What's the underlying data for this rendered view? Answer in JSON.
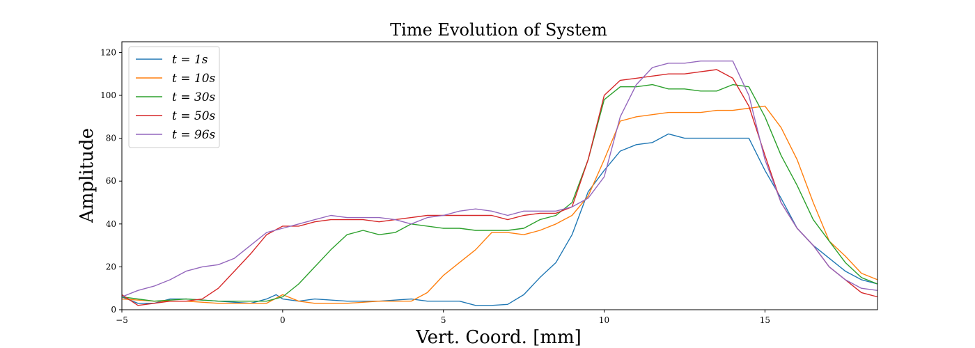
{
  "chart_data": {
    "type": "line",
    "title": "Time Evolution of System",
    "xlabel": "Vert. Coord. [mm]",
    "ylabel": "Amplitude",
    "xlim": [
      -5,
      18.5
    ],
    "ylim": [
      0,
      125
    ],
    "xticks": [
      -5,
      0,
      5,
      10,
      15
    ],
    "yticks": [
      0,
      20,
      40,
      60,
      80,
      100,
      120
    ],
    "grid": false,
    "legend_position": "upper-left",
    "series": [
      {
        "name": "t = 1s",
        "color": "#1f77b4",
        "points": [
          [
            -5,
            6
          ],
          [
            -4.5,
            3
          ],
          [
            -4,
            3
          ],
          [
            -3.5,
            5
          ],
          [
            -3,
            5
          ],
          [
            -2,
            4
          ],
          [
            -1,
            3
          ],
          [
            -0.5,
            5
          ],
          [
            -0.2,
            7
          ],
          [
            0,
            5
          ],
          [
            0.5,
            4
          ],
          [
            1,
            5
          ],
          [
            2,
            4
          ],
          [
            3,
            4
          ],
          [
            4,
            5
          ],
          [
            4.5,
            4
          ],
          [
            5,
            4
          ],
          [
            5.5,
            4
          ],
          [
            6,
            2
          ],
          [
            6.5,
            2
          ],
          [
            7,
            2.5
          ],
          [
            7.5,
            7
          ],
          [
            8,
            15
          ],
          [
            8.5,
            22
          ],
          [
            9,
            35
          ],
          [
            9.5,
            55
          ],
          [
            10,
            65
          ],
          [
            10.5,
            74
          ],
          [
            11,
            77
          ],
          [
            11.5,
            78
          ],
          [
            12,
            82
          ],
          [
            12.5,
            80
          ],
          [
            13,
            80
          ],
          [
            13.5,
            80
          ],
          [
            14,
            80
          ],
          [
            14.5,
            80
          ],
          [
            15,
            65
          ],
          [
            15.5,
            52
          ],
          [
            16,
            38
          ],
          [
            16.5,
            30
          ],
          [
            17,
            24
          ],
          [
            17.5,
            18
          ],
          [
            18,
            14
          ],
          [
            18.5,
            12
          ]
        ]
      },
      {
        "name": "t = 10s",
        "color": "#ff7f0e",
        "points": [
          [
            -5,
            5
          ],
          [
            -4,
            4
          ],
          [
            -3,
            4
          ],
          [
            -2,
            3
          ],
          [
            -1,
            3
          ],
          [
            -0.5,
            3
          ],
          [
            0,
            7
          ],
          [
            0.5,
            4
          ],
          [
            1,
            3
          ],
          [
            2,
            3
          ],
          [
            3,
            4
          ],
          [
            4,
            4
          ],
          [
            4.5,
            8
          ],
          [
            5,
            16
          ],
          [
            5.5,
            22
          ],
          [
            6,
            28
          ],
          [
            6.5,
            36
          ],
          [
            7,
            36
          ],
          [
            7.5,
            35
          ],
          [
            8,
            37
          ],
          [
            8.5,
            40
          ],
          [
            9,
            44
          ],
          [
            9.5,
            53
          ],
          [
            10,
            70
          ],
          [
            10.5,
            88
          ],
          [
            11,
            90
          ],
          [
            11.5,
            91
          ],
          [
            12,
            92
          ],
          [
            12.5,
            92
          ],
          [
            13,
            92
          ],
          [
            13.5,
            93
          ],
          [
            14,
            93
          ],
          [
            14.5,
            94
          ],
          [
            15,
            95
          ],
          [
            15.5,
            85
          ],
          [
            16,
            70
          ],
          [
            16.5,
            50
          ],
          [
            17,
            32
          ],
          [
            17.5,
            25
          ],
          [
            18,
            17
          ],
          [
            18.5,
            14
          ]
        ]
      },
      {
        "name": "t = 30s",
        "color": "#2ca02c",
        "points": [
          [
            -5,
            6
          ],
          [
            -4,
            4
          ],
          [
            -3,
            5
          ],
          [
            -2,
            4
          ],
          [
            -1,
            4
          ],
          [
            -0.5,
            4
          ],
          [
            0,
            6
          ],
          [
            0.5,
            12
          ],
          [
            1,
            20
          ],
          [
            1.5,
            28
          ],
          [
            2,
            35
          ],
          [
            2.5,
            37
          ],
          [
            3,
            35
          ],
          [
            3.5,
            36
          ],
          [
            4,
            40
          ],
          [
            4.5,
            39
          ],
          [
            5,
            38
          ],
          [
            5.5,
            38
          ],
          [
            6,
            37
          ],
          [
            6.5,
            37
          ],
          [
            7,
            37
          ],
          [
            7.5,
            38
          ],
          [
            8,
            42
          ],
          [
            8.5,
            44
          ],
          [
            9,
            50
          ],
          [
            9.5,
            70
          ],
          [
            10,
            98
          ],
          [
            10.5,
            104
          ],
          [
            11,
            104
          ],
          [
            11.5,
            105
          ],
          [
            12,
            103
          ],
          [
            12.5,
            103
          ],
          [
            13,
            102
          ],
          [
            13.5,
            102
          ],
          [
            14,
            105
          ],
          [
            14.5,
            104
          ],
          [
            15,
            90
          ],
          [
            15.5,
            72
          ],
          [
            16,
            58
          ],
          [
            16.5,
            42
          ],
          [
            17,
            32
          ],
          [
            17.5,
            22
          ],
          [
            18,
            15
          ],
          [
            18.5,
            12
          ]
        ]
      },
      {
        "name": "t = 50s",
        "color": "#d62728",
        "points": [
          [
            -5,
            7
          ],
          [
            -4.5,
            2
          ],
          [
            -4,
            3
          ],
          [
            -3.5,
            4
          ],
          [
            -3,
            4
          ],
          [
            -2.5,
            5
          ],
          [
            -2,
            10
          ],
          [
            -1.5,
            18
          ],
          [
            -1,
            26
          ],
          [
            -0.5,
            35
          ],
          [
            0,
            39
          ],
          [
            0.5,
            39
          ],
          [
            1,
            41
          ],
          [
            1.5,
            42
          ],
          [
            2,
            42
          ],
          [
            2.5,
            42
          ],
          [
            3,
            41
          ],
          [
            3.5,
            42
          ],
          [
            4,
            43
          ],
          [
            4.5,
            44
          ],
          [
            5,
            44
          ],
          [
            5.5,
            44
          ],
          [
            6,
            44
          ],
          [
            6.5,
            44
          ],
          [
            7,
            42
          ],
          [
            7.5,
            44
          ],
          [
            8,
            45
          ],
          [
            8.5,
            45
          ],
          [
            9,
            48
          ],
          [
            9.5,
            70
          ],
          [
            10,
            100
          ],
          [
            10.5,
            107
          ],
          [
            11,
            108
          ],
          [
            11.5,
            109
          ],
          [
            12,
            110
          ],
          [
            12.5,
            110
          ],
          [
            13,
            111
          ],
          [
            13.5,
            112
          ],
          [
            14,
            108
          ],
          [
            14.5,
            95
          ],
          [
            15,
            72
          ],
          [
            15.5,
            50
          ],
          [
            16,
            38
          ],
          [
            16.5,
            30
          ],
          [
            17,
            20
          ],
          [
            17.5,
            14
          ],
          [
            18,
            8
          ],
          [
            18.5,
            6
          ]
        ]
      },
      {
        "name": "t = 96s",
        "color": "#9467bd",
        "points": [
          [
            -5,
            6
          ],
          [
            -4.5,
            9
          ],
          [
            -4,
            11
          ],
          [
            -3.5,
            14
          ],
          [
            -3,
            18
          ],
          [
            -2.5,
            20
          ],
          [
            -2,
            21
          ],
          [
            -1.5,
            24
          ],
          [
            -1,
            30
          ],
          [
            -0.5,
            36
          ],
          [
            0,
            38
          ],
          [
            0.5,
            40
          ],
          [
            1,
            42
          ],
          [
            1.5,
            44
          ],
          [
            2,
            43
          ],
          [
            2.5,
            43
          ],
          [
            3,
            43
          ],
          [
            3.5,
            42
          ],
          [
            4,
            40
          ],
          [
            4.5,
            43
          ],
          [
            5,
            44
          ],
          [
            5.5,
            46
          ],
          [
            6,
            47
          ],
          [
            6.5,
            46
          ],
          [
            7,
            44
          ],
          [
            7.5,
            46
          ],
          [
            8,
            46
          ],
          [
            8.5,
            46
          ],
          [
            9,
            48
          ],
          [
            9.5,
            52
          ],
          [
            10,
            62
          ],
          [
            10.5,
            90
          ],
          [
            11,
            105
          ],
          [
            11.5,
            113
          ],
          [
            12,
            115
          ],
          [
            12.5,
            115
          ],
          [
            13,
            116
          ],
          [
            13.5,
            116
          ],
          [
            14,
            116
          ],
          [
            14.5,
            100
          ],
          [
            15,
            70
          ],
          [
            15.5,
            50
          ],
          [
            16,
            38
          ],
          [
            16.5,
            30
          ],
          [
            17,
            20
          ],
          [
            17.5,
            14
          ],
          [
            18,
            10
          ],
          [
            18.5,
            9
          ]
        ]
      }
    ]
  }
}
